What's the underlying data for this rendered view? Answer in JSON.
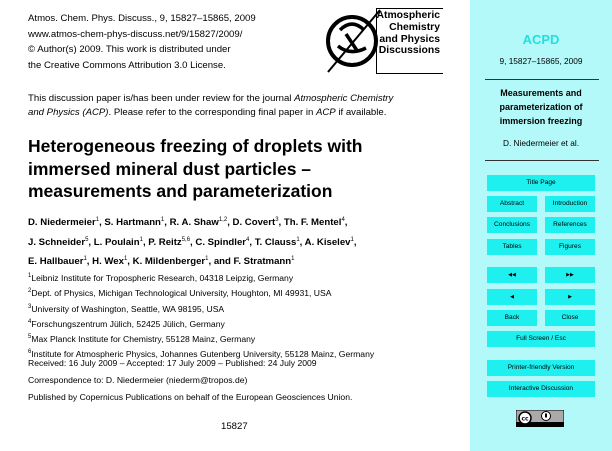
{
  "header": {
    "lines": [
      "Atmos. Chem. Phys. Discuss., 9, 15827–15865, 2009",
      "www.atmos-chem-phys-discuss.net/9/15827/2009/",
      "© Author(s) 2009. This work is distributed under",
      "the Creative Commons Attribution 3.0 License."
    ]
  },
  "logo": {
    "lines": [
      "Atmospheric",
      "Chemistry",
      "and Physics",
      "Discussions"
    ],
    "mark": "EGU"
  },
  "review": {
    "line1_a": "This discussion paper is/has been under review for the journal ",
    "line1_i": "Atmospheric Chemistry",
    "line2_i": "and Physics (ACP)",
    "line2_b": ". Please refer to the corresponding final paper in ",
    "line2_i2": "ACP",
    "line2_c": " if available."
  },
  "title": [
    "Heterogeneous freezing of droplets with",
    "immersed mineral dust particles –",
    "measurements and parameterization"
  ],
  "authors": [
    [
      [
        "D. Niedermeier",
        "1"
      ],
      [
        "S. Hartmann",
        "1"
      ],
      [
        "R. A. Shaw",
        "1,2"
      ],
      [
        "D. Covert",
        "3"
      ],
      [
        "Th. F. Mentel",
        "4"
      ]
    ],
    [
      [
        "J. Schneider",
        "5"
      ],
      [
        "L. Poulain",
        "1"
      ],
      [
        "P. Reitz",
        "5,6"
      ],
      [
        "C. Spindler",
        "4"
      ],
      [
        "T. Clauss",
        "1"
      ],
      [
        "A. Kiselev",
        "1"
      ]
    ],
    [
      [
        "E. Hallbauer",
        "1"
      ],
      [
        "H. Wex",
        "1"
      ],
      [
        "K. Mildenberger",
        "1"
      ],
      [
        "and F. Stratmann",
        "1"
      ]
    ]
  ],
  "affiliations": [
    [
      "1",
      "Leibniz Institute for Tropospheric Research, 04318 Leipzig, Germany"
    ],
    [
      "2",
      "Dept. of Physics, Michigan Technological University, Houghton, MI 49931, USA"
    ],
    [
      "3",
      "University of Washington, Seattle, WA 98195, USA"
    ],
    [
      "4",
      "Forschungszentrum Jülich, 52425 Jülich, Germany"
    ],
    [
      "5",
      "Max Planck Institute for Chemistry, 55128 Mainz, Germany"
    ],
    [
      "6",
      "Institute for Atmospheric Physics, Johannes Gutenberg University, 55128 Mainz, Germany"
    ]
  ],
  "received": "Received: 16 July 2009 – Accepted: 17 July 2009 – Published: 24 July 2009",
  "correspondence": "Correspondence to: D. Niedermeier (niederm@tropos.de)",
  "published": "Published by Copernicus Publications on behalf of the European Geosciences Union.",
  "page_number": "15827",
  "sidebar": {
    "journal": "ACPD",
    "citation": "9, 15827–15865, 2009",
    "short_title": [
      "Measurements and",
      "parameterization of",
      "immersion freezing"
    ],
    "authors": "D. Niedermeier et al.",
    "buttons": {
      "title_page": "Title Page",
      "abstract": "Abstract",
      "introduction": "Introduction",
      "conclusions": "Conclusions",
      "references": "References",
      "tables": "Tables",
      "figures": "Figures",
      "first": "◀◀",
      "last": "▶▶",
      "prev": "◀",
      "next": "▶",
      "back": "Back",
      "close": "Close",
      "fullscreen": "Full Screen / Esc",
      "printer": "Printer-friendly Version",
      "discussion": "Interactive Discussion"
    },
    "license_badge": "cc-by",
    "journal_color": "#22e0e0"
  }
}
